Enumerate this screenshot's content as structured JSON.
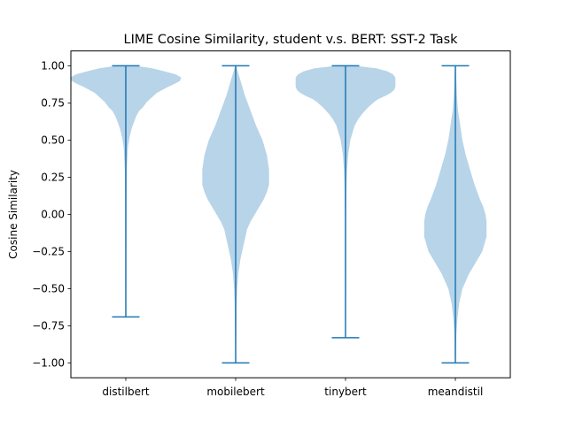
{
  "chart_data": {
    "type": "violin",
    "title": "LIME Cosine Similarity, student v.s. BERT: SST-2 Task",
    "xlabel": "",
    "ylabel": "Cosine Similarity",
    "ylim": [
      -1.1,
      1.1
    ],
    "yticks": [
      "1.00",
      "0.75",
      "0.50",
      "0.25",
      "0.00",
      "−0.25",
      "−0.50",
      "−0.75",
      "−1.00"
    ],
    "ytick_values": [
      1.0,
      0.75,
      0.5,
      0.25,
      0.0,
      -0.25,
      -0.5,
      -0.75,
      -1.0
    ],
    "categories": [
      "distilbert",
      "mobilebert",
      "tinybert",
      "meandistil"
    ],
    "grid": false,
    "colors": {
      "violin_fill": "#b8d4e8",
      "whisker": "#1f77b4",
      "axes": "#000000"
    },
    "series": [
      {
        "category": "distilbert",
        "min": -0.69,
        "max": 1.0,
        "density": [
          [
            1.0,
            0.06
          ],
          [
            0.98,
            0.24
          ],
          [
            0.96,
            0.35
          ],
          [
            0.94,
            0.45
          ],
          [
            0.92,
            0.5
          ],
          [
            0.9,
            0.49
          ],
          [
            0.88,
            0.44
          ],
          [
            0.86,
            0.38
          ],
          [
            0.84,
            0.33
          ],
          [
            0.82,
            0.28
          ],
          [
            0.8,
            0.25
          ],
          [
            0.76,
            0.19
          ],
          [
            0.72,
            0.15
          ],
          [
            0.7,
            0.12
          ],
          [
            0.66,
            0.09
          ],
          [
            0.62,
            0.07
          ],
          [
            0.58,
            0.05
          ],
          [
            0.52,
            0.03
          ],
          [
            0.45,
            0.015
          ],
          [
            0.3,
            0.005
          ],
          [
            0.0,
            0.002
          ],
          [
            -0.4,
            0.001
          ],
          [
            -0.69,
            0.0
          ]
        ]
      },
      {
        "category": "mobilebert",
        "min": -1.0,
        "max": 1.0,
        "density": [
          [
            1.0,
            0.0
          ],
          [
            0.95,
            0.02
          ],
          [
            0.9,
            0.04
          ],
          [
            0.85,
            0.06
          ],
          [
            0.8,
            0.08
          ],
          [
            0.7,
            0.13
          ],
          [
            0.6,
            0.18
          ],
          [
            0.5,
            0.24
          ],
          [
            0.45,
            0.26
          ],
          [
            0.4,
            0.28
          ],
          [
            0.35,
            0.29
          ],
          [
            0.3,
            0.3
          ],
          [
            0.25,
            0.3
          ],
          [
            0.2,
            0.3
          ],
          [
            0.15,
            0.28
          ],
          [
            0.1,
            0.25
          ],
          [
            0.05,
            0.21
          ],
          [
            0.0,
            0.17
          ],
          [
            -0.05,
            0.13
          ],
          [
            -0.1,
            0.1
          ],
          [
            -0.2,
            0.07
          ],
          [
            -0.3,
            0.04
          ],
          [
            -0.4,
            0.02
          ],
          [
            -0.5,
            0.01
          ],
          [
            -0.6,
            0.005
          ],
          [
            -0.8,
            0.002
          ],
          [
            -1.0,
            0.0
          ]
        ]
      },
      {
        "category": "tinybert",
        "min": -0.83,
        "max": 1.0,
        "density": [
          [
            1.0,
            0.05
          ],
          [
            0.98,
            0.28
          ],
          [
            0.96,
            0.38
          ],
          [
            0.94,
            0.43
          ],
          [
            0.92,
            0.45
          ],
          [
            0.9,
            0.45
          ],
          [
            0.88,
            0.45
          ],
          [
            0.86,
            0.45
          ],
          [
            0.84,
            0.44
          ],
          [
            0.82,
            0.41
          ],
          [
            0.8,
            0.36
          ],
          [
            0.78,
            0.3
          ],
          [
            0.76,
            0.26
          ],
          [
            0.72,
            0.2
          ],
          [
            0.68,
            0.15
          ],
          [
            0.64,
            0.11
          ],
          [
            0.6,
            0.08
          ],
          [
            0.55,
            0.06
          ],
          [
            0.5,
            0.04
          ],
          [
            0.45,
            0.03
          ],
          [
            0.4,
            0.02
          ],
          [
            0.3,
            0.01
          ],
          [
            0.2,
            0.005
          ],
          [
            0.0,
            0.002
          ],
          [
            -0.5,
            0.001
          ],
          [
            -0.83,
            0.0
          ]
        ]
      },
      {
        "category": "meandistil",
        "min": -1.0,
        "max": 1.0,
        "density": [
          [
            1.0,
            0.0
          ],
          [
            0.9,
            0.005
          ],
          [
            0.8,
            0.01
          ],
          [
            0.7,
            0.02
          ],
          [
            0.6,
            0.04
          ],
          [
            0.5,
            0.06
          ],
          [
            0.4,
            0.09
          ],
          [
            0.3,
            0.13
          ],
          [
            0.2,
            0.17
          ],
          [
            0.1,
            0.22
          ],
          [
            0.05,
            0.25
          ],
          [
            0.0,
            0.27
          ],
          [
            -0.05,
            0.28
          ],
          [
            -0.1,
            0.28
          ],
          [
            -0.15,
            0.28
          ],
          [
            -0.2,
            0.26
          ],
          [
            -0.25,
            0.24
          ],
          [
            -0.3,
            0.2
          ],
          [
            -0.35,
            0.16
          ],
          [
            -0.4,
            0.12
          ],
          [
            -0.45,
            0.09
          ],
          [
            -0.5,
            0.06
          ],
          [
            -0.6,
            0.03
          ],
          [
            -0.7,
            0.015
          ],
          [
            -0.8,
            0.005
          ],
          [
            -0.9,
            0.002
          ],
          [
            -1.0,
            0.0
          ]
        ]
      }
    ]
  }
}
